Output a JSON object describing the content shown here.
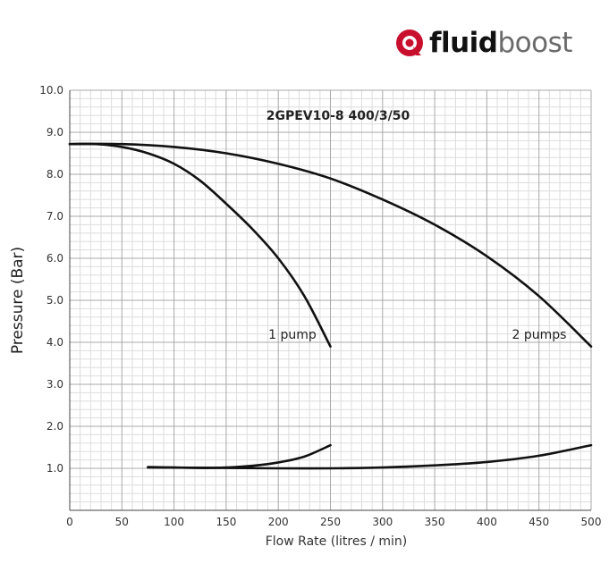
{
  "logo": {
    "bold_text": "fluid",
    "light_text": "boost",
    "brand_color": "#c8102e",
    "icon": "fluidboost-logo-icon"
  },
  "chart_data": {
    "type": "line",
    "title": "2GPEV10-8 400/3/50",
    "xlabel": "Flow Rate (litres / min)",
    "ylabel": "Pressure (Bar)",
    "xlim": [
      0,
      500
    ],
    "ylim": [
      0,
      10
    ],
    "x_ticks": [
      0,
      50,
      100,
      150,
      200,
      250,
      300,
      350,
      400,
      450,
      500
    ],
    "x_tick_labels": [
      "0",
      "50",
      "100",
      "150",
      "200",
      "250",
      "300",
      "350",
      "400",
      "450",
      "500"
    ],
    "y_ticks": [
      1,
      2,
      3,
      4,
      5,
      6,
      7,
      8,
      9,
      10
    ],
    "y_tick_labels": [
      "1.0",
      "2.0",
      "3.0",
      "4.0",
      "5.0",
      "6.0",
      "7.0",
      "8.0",
      "9.0",
      "10.0"
    ],
    "grid": true,
    "line_color": "#111111",
    "series": [
      {
        "name": "1 pump",
        "x": [
          0,
          25,
          50,
          75,
          100,
          125,
          150,
          175,
          200,
          225,
          250
        ],
        "y": [
          8.72,
          8.72,
          8.65,
          8.5,
          8.25,
          7.85,
          7.3,
          6.7,
          6.0,
          5.1,
          3.9
        ]
      },
      {
        "name": "2 pumps",
        "x": [
          0,
          50,
          100,
          150,
          200,
          250,
          300,
          350,
          400,
          450,
          500
        ],
        "y": [
          8.72,
          8.72,
          8.65,
          8.5,
          8.25,
          7.9,
          7.4,
          6.8,
          6.05,
          5.1,
          3.9
        ]
      },
      {
        "x": [
          75,
          100,
          125,
          150,
          175,
          200,
          225,
          250
        ],
        "y": [
          1.03,
          1.02,
          1.01,
          1.02,
          1.06,
          1.14,
          1.28,
          1.55
        ]
      },
      {
        "x": [
          75,
          150,
          200,
          250,
          300,
          350,
          400,
          450,
          500
        ],
        "y": [
          1.02,
          1.01,
          1.0,
          1.0,
          1.02,
          1.07,
          1.15,
          1.3,
          1.55
        ]
      }
    ]
  }
}
